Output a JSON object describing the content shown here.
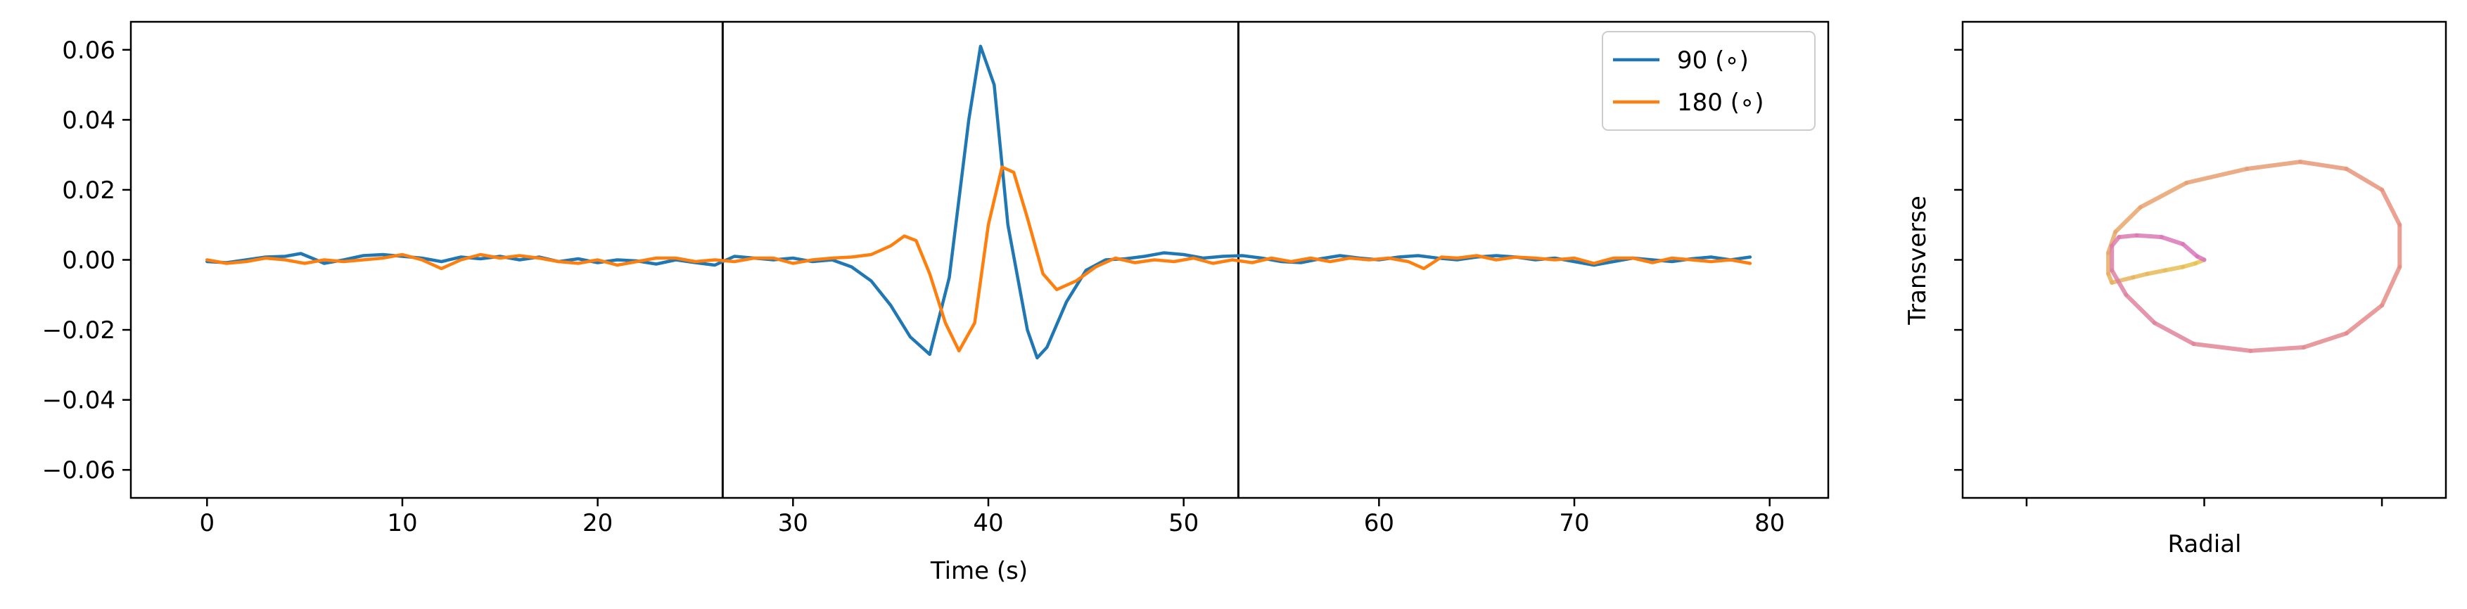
{
  "chart_data": [
    {
      "type": "line",
      "xlabel": "Time (s)",
      "ylabel": "",
      "xlim": [
        -3.9,
        83.0
      ],
      "ylim": [
        -0.068,
        0.068
      ],
      "x_ticks": [
        0,
        10,
        20,
        30,
        40,
        50,
        60,
        70,
        80
      ],
      "y_ticks": [
        -0.06,
        -0.04,
        -0.02,
        0.0,
        0.02,
        0.04,
        0.06
      ],
      "x_tick_labels": [
        "0",
        "10",
        "20",
        "30",
        "40",
        "50",
        "60",
        "70",
        "80"
      ],
      "y_tick_labels": [
        "−0.06",
        "−0.04",
        "−0.02",
        "0.00",
        "0.02",
        "0.04",
        "0.06"
      ],
      "vertical_lines": [
        26.4,
        52.8
      ],
      "legend_position": "upper right",
      "series": [
        {
          "name": "90 (∘)",
          "color": "#1f77b4",
          "x": [
            0,
            1,
            2,
            3,
            4,
            4.8,
            5.5,
            6,
            7,
            8,
            9,
            10,
            11,
            12,
            13,
            14,
            15,
            16,
            17,
            18,
            19,
            20,
            21,
            22,
            23,
            24,
            25,
            26,
            27,
            28,
            29,
            30,
            31,
            32,
            33,
            34,
            35,
            36,
            37,
            38,
            39,
            39.6,
            40.3,
            41,
            42,
            42.5,
            43,
            44,
            45,
            46,
            47,
            48,
            49,
            50,
            51,
            52,
            53,
            54,
            55,
            56,
            57,
            58,
            59,
            60,
            61,
            62,
            63,
            64,
            65,
            66,
            67,
            68,
            69,
            70,
            71,
            72,
            73,
            74,
            75,
            76,
            77,
            78,
            79
          ],
          "y": [
            -0.0005,
            -0.0008,
            0.0,
            0.0008,
            0.001,
            0.0018,
            0.0002,
            -0.001,
            0.0,
            0.0012,
            0.0015,
            0.001,
            0.0005,
            -0.0005,
            0.0008,
            0.0003,
            0.001,
            0.0,
            0.0008,
            -0.0005,
            0.0003,
            -0.0008,
            0.0,
            -0.0003,
            -0.0012,
            0.0,
            -0.0008,
            -0.0015,
            0.001,
            0.0005,
            0.0,
            0.0005,
            -0.0005,
            0.0,
            -0.002,
            -0.006,
            -0.013,
            -0.022,
            -0.027,
            -0.005,
            0.04,
            0.061,
            0.05,
            0.01,
            -0.02,
            -0.028,
            -0.025,
            -0.012,
            -0.003,
            0.0,
            0.0003,
            0.001,
            0.002,
            0.0015,
            0.0005,
            0.001,
            0.0012,
            0.0005,
            -0.0005,
            -0.0008,
            0.0003,
            0.0012,
            0.0005,
            0.0,
            0.0008,
            0.0012,
            0.0005,
            0.0,
            0.0008,
            0.0012,
            0.0008,
            0.0,
            0.0005,
            -0.0005,
            -0.0015,
            -0.0005,
            0.0005,
            0.0,
            -0.0005,
            0.0003,
            0.0008,
            0.0,
            0.0008
          ]
        },
        {
          "name": "180 (∘)",
          "color": "#ff7f0e",
          "x": [
            0,
            1,
            2,
            3,
            4,
            5,
            6,
            7,
            8,
            9,
            10,
            11,
            12,
            13,
            14,
            15,
            16,
            17,
            18,
            19,
            20,
            21,
            22,
            23,
            24,
            25,
            26,
            27,
            28,
            29,
            30,
            31,
            32,
            33,
            34,
            35,
            35.7,
            36.3,
            37,
            37.8,
            38.5,
            39.3,
            40,
            40.7,
            41.3,
            42,
            42.8,
            43.5,
            44.5,
            45.5,
            46.5,
            47.5,
            48.5,
            49.5,
            50.5,
            51.5,
            52.5,
            53.5,
            54.5,
            55.5,
            56.5,
            57.5,
            58.5,
            59.5,
            60.5,
            61.5,
            62.3,
            63.2,
            64,
            65,
            66,
            67,
            68,
            69,
            70,
            71,
            72,
            73,
            74,
            75,
            76,
            77,
            78,
            79
          ],
          "y": [
            0.0,
            -0.001,
            -0.0005,
            0.0005,
            0.0,
            -0.001,
            0.0,
            -0.0005,
            0.0,
            0.0005,
            0.0015,
            0.0,
            -0.0025,
            0.0,
            0.0015,
            0.0005,
            0.0012,
            0.0005,
            -0.0005,
            -0.001,
            0.0,
            -0.0015,
            -0.0005,
            0.0005,
            0.0005,
            -0.0005,
            0.0,
            -0.0005,
            0.0005,
            0.0005,
            -0.001,
            0.0,
            0.0005,
            0.0008,
            0.0015,
            0.004,
            0.0068,
            0.0055,
            -0.004,
            -0.018,
            -0.026,
            -0.018,
            0.01,
            0.0265,
            0.025,
            0.012,
            -0.004,
            -0.0085,
            -0.006,
            -0.002,
            0.0005,
            -0.0008,
            0.0,
            -0.0005,
            0.0005,
            -0.001,
            0.0,
            -0.0008,
            0.0005,
            -0.0005,
            0.0005,
            -0.0005,
            0.0005,
            0.0,
            0.0005,
            -0.0005,
            -0.0025,
            0.0008,
            0.0005,
            0.0012,
            0.0,
            0.0008,
            0.0005,
            0.0,
            0.0005,
            -0.001,
            0.0005,
            0.0005,
            -0.0008,
            0.0005,
            0.0,
            -0.0005,
            0.0,
            -0.001
          ]
        }
      ]
    },
    {
      "type": "scatter",
      "xlabel": "Radial",
      "ylabel": "Transverse",
      "xlim": [
        -0.068,
        0.068
      ],
      "ylim": [
        -0.068,
        0.068
      ],
      "x_ticks": [
        -0.05,
        0.0,
        0.05
      ],
      "y_ticks": [
        -0.06,
        -0.04,
        -0.02,
        0.0,
        0.02,
        0.04,
        0.06
      ],
      "tick_labels_shown": false,
      "series": [
        {
          "name": "",
          "color_start": "#e8c44c",
          "color_mid": "#e89080",
          "color_end": "#d873c0",
          "x": [
            0.0,
            -0.0025,
            -0.006,
            -0.011,
            -0.016,
            -0.02,
            -0.026,
            -0.027,
            -0.027,
            -0.025,
            -0.018,
            -0.005,
            0.012,
            0.027,
            0.04,
            0.05,
            0.055,
            0.055,
            0.05,
            0.04,
            0.028,
            0.013,
            -0.003,
            -0.014,
            -0.022,
            -0.026,
            -0.026,
            -0.024,
            -0.019,
            -0.012,
            -0.006,
            -0.002,
            0.0
          ],
          "y": [
            0.0,
            -0.001,
            -0.002,
            -0.003,
            -0.004,
            -0.005,
            -0.0065,
            -0.004,
            0.002,
            0.008,
            0.015,
            0.022,
            0.026,
            0.028,
            0.026,
            0.02,
            0.01,
            -0.002,
            -0.013,
            -0.021,
            -0.025,
            -0.026,
            -0.024,
            -0.018,
            -0.01,
            -0.003,
            0.004,
            0.0065,
            0.007,
            0.0065,
            0.0045,
            0.001,
            0.0
          ]
        }
      ]
    }
  ]
}
